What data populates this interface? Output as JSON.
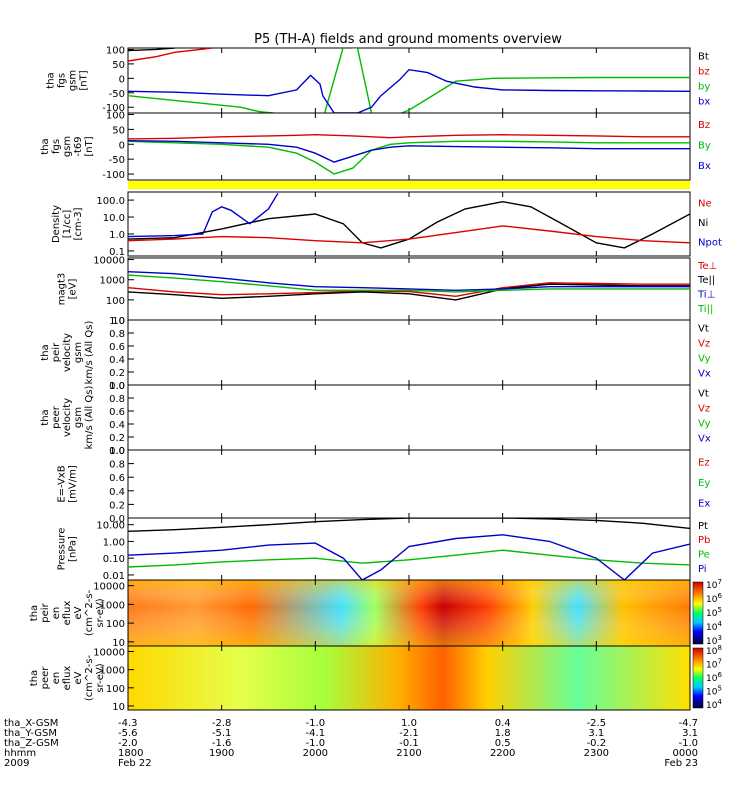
{
  "title": "P5 (TH-A) fields and ground moments overview",
  "chart_data": {
    "type": "line",
    "title": "P5 (TH-A) fields and ground moments overview",
    "x": [
      "1800",
      "1900",
      "2000",
      "2100",
      "2200",
      "2300",
      "0000"
    ],
    "panels": [
      {
        "id": "fgs",
        "ylabel_lines": [
          "tha",
          "fgs",
          "gsm",
          "[nT]"
        ],
        "ylim": [
          -120,
          105
        ],
        "yticks": [
          "100",
          "50",
          "0",
          "-50",
          "-100"
        ],
        "ytick_values": [
          100,
          50,
          0,
          -50,
          -100
        ],
        "legend": [
          {
            "name": "Bt",
            "color": "#000000"
          },
          {
            "name": "bz",
            "color": "#dd0000"
          },
          {
            "name": "by",
            "color": "#00bb00"
          },
          {
            "name": "bx",
            "color": "#0000cc"
          }
        ]
      },
      {
        "id": "fgs_sm",
        "ylabel_lines": [
          "tha",
          "fgs",
          "gsm",
          "-t69",
          "[nT]"
        ],
        "ylim": [
          -120,
          105
        ],
        "yticks": [
          "100",
          "50",
          "0",
          "-50",
          "-100"
        ],
        "ytick_values": [
          100,
          50,
          0,
          -50,
          -100
        ],
        "legend": [
          {
            "name": "Bz",
            "color": "#dd0000"
          },
          {
            "name": "By",
            "color": "#00bb00"
          },
          {
            "name": "Bx",
            "color": "#0000cc"
          }
        ]
      },
      {
        "id": "density",
        "ylabel_lines": [
          "Density",
          "[1/cc]",
          "[cm-3]"
        ],
        "scale": "log",
        "ylim": [
          0.05,
          300
        ],
        "yticks": [
          "100.0",
          "10.0",
          "1.0",
          "0.1"
        ],
        "ytick_values": [
          100,
          10,
          1,
          0.1
        ],
        "legend": [
          {
            "name": "Ne",
            "color": "#dd0000"
          },
          {
            "name": "Ni",
            "color": "#000000"
          },
          {
            "name": "Npot",
            "color": "#0000cc"
          }
        ]
      },
      {
        "id": "temperature",
        "ylabel_lines": [
          "magt3",
          "[eV]"
        ],
        "scale": "log",
        "ylim": [
          10,
          12000
        ],
        "yticks": [
          "10000",
          "1000",
          "100",
          "10"
        ],
        "ytick_values": [
          10000,
          1000,
          100,
          10
        ],
        "legend": [
          {
            "name": "Te⊥",
            "color": "#dd0000"
          },
          {
            "name": "Te||",
            "color": "#000000"
          },
          {
            "name": "Ti⊥",
            "color": "#0000cc"
          },
          {
            "name": "Ti||",
            "color": "#00bb00"
          }
        ]
      },
      {
        "id": "peir_velocity",
        "ylabel_lines": [
          "tha",
          "peir",
          "velocity",
          "gsm",
          "km/s (All Qs)"
        ],
        "ylim": [
          0,
          1
        ],
        "yticks": [
          "1.0",
          "0.8",
          "0.6",
          "0.4",
          "0.2",
          "0.0"
        ],
        "ytick_values": [
          1,
          0.8,
          0.6,
          0.4,
          0.2,
          0
        ],
        "legend": [
          {
            "name": "Vt",
            "color": "#000000"
          },
          {
            "name": "Vz",
            "color": "#dd0000"
          },
          {
            "name": "Vy",
            "color": "#00bb00"
          },
          {
            "name": "Vx",
            "color": "#0000cc"
          }
        ]
      },
      {
        "id": "peer_velocity",
        "ylabel_lines": [
          "tha",
          "peer",
          "velocity",
          "gsm",
          "km/s (All Qs)"
        ],
        "ylim": [
          0,
          1
        ],
        "yticks": [
          "1.0",
          "0.8",
          "0.6",
          "0.4",
          "0.2",
          "0.0"
        ],
        "ytick_values": [
          1,
          0.8,
          0.6,
          0.4,
          0.2,
          0
        ],
        "legend": [
          {
            "name": "Vt",
            "color": "#000000"
          },
          {
            "name": "Vz",
            "color": "#dd0000"
          },
          {
            "name": "Vy",
            "color": "#00bb00"
          },
          {
            "name": "Vx",
            "color": "#0000cc"
          }
        ]
      },
      {
        "id": "efield",
        "ylabel_lines": [
          "E=-VxB",
          "[mV/m]"
        ],
        "ylim": [
          0,
          1
        ],
        "yticks": [
          "1.0",
          "0.8",
          "0.6",
          "0.4",
          "0.2",
          "0.0"
        ],
        "ytick_values": [
          1,
          0.8,
          0.6,
          0.4,
          0.2,
          0
        ],
        "legend": [
          {
            "name": "Ez",
            "color": "#dd0000"
          },
          {
            "name": "Ey",
            "color": "#00bb00"
          },
          {
            "name": "Ex",
            "color": "#0000cc"
          }
        ]
      },
      {
        "id": "pressure",
        "ylabel_lines": [
          "Pressure",
          "[nPa]"
        ],
        "scale": "log",
        "ylim": [
          0.005,
          25
        ],
        "yticks": [
          "10.00",
          "1.00",
          "0.10",
          "0.01"
        ],
        "ytick_values": [
          10,
          1,
          0.1,
          0.01
        ],
        "legend": [
          {
            "name": "Pt",
            "color": "#000000"
          },
          {
            "name": "Pb",
            "color": "#dd0000"
          },
          {
            "name": "Pe",
            "color": "#00bb00"
          },
          {
            "name": "Pi",
            "color": "#0000cc"
          }
        ]
      },
      {
        "id": "peir_spec",
        "type": "heatmap",
        "ylabel_lines": [
          "tha",
          "peir",
          "en",
          "eflux",
          "eV",
          "(cm^2-s-",
          "sr-eV)"
        ],
        "scale": "log",
        "ylim": [
          6,
          20000
        ],
        "yticks": [
          "10000",
          "1000",
          "100",
          "10"
        ],
        "ytick_values": [
          10000,
          1000,
          100,
          10
        ],
        "colorbar": [
          "10^7",
          "10^6",
          "10^5",
          "10^4",
          "10^3"
        ]
      },
      {
        "id": "peer_spec",
        "type": "heatmap",
        "ylabel_lines": [
          "tha",
          "peer",
          "en",
          "eflux",
          "eV",
          "(cm^2-s-",
          "sr-eV)"
        ],
        "scale": "log",
        "ylim": [
          6,
          20000
        ],
        "yticks": [
          "10000",
          "1000",
          "100",
          "10"
        ],
        "ytick_values": [
          10000,
          1000,
          100,
          10
        ],
        "colorbar": [
          "10^8",
          "10^7",
          "10^6",
          "10^5",
          "10^4"
        ]
      }
    ],
    "ephemeris": {
      "rows": [
        {
          "label": "tha_X-GSM",
          "values": [
            "-4.3",
            "-2.8",
            "-1.0",
            "1.0",
            "0.4",
            "-2.5",
            "-4.7"
          ]
        },
        {
          "label": "tha_Y-GSM",
          "values": [
            "-5.6",
            "-5.1",
            "-4.1",
            "-2.1",
            "1.8",
            "3.1",
            "3.1"
          ]
        },
        {
          "label": "tha_Z-GSM",
          "values": [
            "-2.0",
            "-1.6",
            "-1.0",
            "-0.1",
            "0.5",
            "-0.2",
            "-1.0"
          ]
        },
        {
          "label": "hhmm",
          "values": [
            "1800",
            "1900",
            "2000",
            "2100",
            "2200",
            "2300",
            "0000"
          ]
        },
        {
          "label": "2009",
          "values": [
            "Feb 22",
            "",
            "",
            "",
            "",
            "",
            "Feb 23"
          ]
        }
      ]
    },
    "series": {
      "fgs_Bt": {
        "x": [
          0,
          0.3,
          0.5
        ],
        "y": [
          96,
          100,
          105
        ]
      },
      "fgs_bz": {
        "x": [
          0,
          0.3,
          0.5,
          0.9
        ],
        "y": [
          60,
          75,
          90,
          105
        ]
      },
      "fgs_by": {
        "x": [
          0,
          0.3,
          0.6,
          0.9,
          1.2,
          1.4,
          1.7,
          1.95,
          2.05,
          2.1,
          2.3,
          2.45,
          2.6,
          2.8,
          3.0,
          3.2,
          3.4,
          3.5,
          3.9,
          4.5,
          5.0,
          5.5,
          6.0
        ],
        "y": [
          -60,
          -70,
          -80,
          -90,
          -100,
          -115,
          -125,
          -135,
          -145,
          -120,
          110,
          105,
          -120,
          -135,
          -110,
          -70,
          -30,
          -10,
          0,
          2,
          3,
          3,
          3
        ]
      },
      "fgs_bx": {
        "x": [
          0,
          0.5,
          1.0,
          1.5,
          1.8,
          1.95,
          2.05,
          2.08,
          2.2,
          2.45,
          2.6,
          2.7,
          2.9,
          3.0,
          3.2,
          3.4,
          3.7,
          4.0,
          4.5,
          5.0,
          5.5,
          6.0
        ],
        "y": [
          -45,
          -48,
          -55,
          -60,
          -40,
          10,
          -20,
          -60,
          -120,
          -120,
          -100,
          -60,
          -5,
          30,
          20,
          -10,
          -30,
          -40,
          -42,
          -43,
          -44,
          -45
        ]
      },
      "fgs2_Bz": {
        "x": [
          0,
          0.5,
          1.0,
          1.5,
          1.8,
          2.0,
          2.2,
          2.4,
          2.6,
          2.8,
          3.0,
          3.5,
          4.0,
          4.5,
          5.0,
          5.5,
          6.0
        ],
        "y": [
          18,
          20,
          25,
          28,
          30,
          32,
          30,
          28,
          25,
          22,
          25,
          30,
          32,
          30,
          28,
          25,
          25
        ]
      },
      "fgs2_By": {
        "x": [
          0,
          0.5,
          1.0,
          1.5,
          1.8,
          2.0,
          2.2,
          2.4,
          2.6,
          2.8,
          3.0,
          3.5,
          4.0,
          4.5,
          5.0,
          5.5,
          6.0
        ],
        "y": [
          10,
          5,
          0,
          -10,
          -30,
          -60,
          -100,
          -80,
          -20,
          0,
          5,
          10,
          10,
          8,
          5,
          5,
          5
        ]
      },
      "fgs2_Bx": {
        "x": [
          0,
          0.5,
          1.0,
          1.5,
          1.8,
          2.0,
          2.2,
          2.4,
          2.6,
          2.8,
          3.0,
          3.5,
          4.0,
          4.5,
          5.0,
          5.5,
          6.0
        ],
        "y": [
          12,
          10,
          5,
          0,
          -10,
          -30,
          -60,
          -40,
          -20,
          -10,
          -5,
          -8,
          -10,
          -12,
          -15,
          -15,
          -15
        ]
      },
      "dens_Ni": {
        "x": [
          0,
          0.5,
          1.0,
          1.5,
          2.0,
          2.3,
          2.5,
          2.7,
          3.0,
          3.3,
          3.6,
          4.0,
          4.3,
          4.6,
          5.0,
          5.3,
          5.6,
          6.0
        ],
        "y": [
          0.5,
          0.6,
          2,
          8,
          15,
          4,
          0.3,
          0.15,
          0.5,
          5,
          30,
          80,
          40,
          5,
          0.3,
          0.15,
          1,
          15
        ]
      },
      "dens_Ne": {
        "x": [
          0,
          0.5,
          1.0,
          1.5,
          2.0,
          2.5,
          3.0,
          3.5,
          4.0,
          4.5,
          5.0,
          5.5,
          6.0
        ],
        "y": [
          0.4,
          0.5,
          0.7,
          0.6,
          0.4,
          0.3,
          0.5,
          1.2,
          3,
          1.5,
          0.7,
          0.4,
          0.3
        ]
      },
      "dens_Npot": {
        "x": [
          0,
          0.5,
          0.8,
          0.9,
          1.0,
          1.1,
          1.3,
          1.5,
          1.6
        ],
        "y": [
          0.7,
          0.8,
          1.0,
          20,
          40,
          25,
          4,
          30,
          250
        ]
      },
      "temp_Te_perp": {
        "x": [
          0,
          0.5,
          1.0,
          1.5,
          2.0,
          2.5,
          3.0,
          3.5,
          4.0,
          4.5,
          5.0,
          5.5,
          6.0
        ],
        "y": [
          400,
          250,
          180,
          200,
          230,
          280,
          260,
          150,
          400,
          700,
          650,
          600,
          600
        ]
      },
      "temp_Te_par": {
        "x": [
          0,
          0.5,
          1.0,
          1.5,
          2.0,
          2.5,
          3.0,
          3.5,
          4.0,
          4.5,
          5.0,
          5.5,
          6.0
        ],
        "y": [
          250,
          180,
          120,
          150,
          200,
          250,
          200,
          100,
          350,
          600,
          550,
          500,
          500
        ]
      },
      "temp_Ti_perp": {
        "x": [
          0,
          0.5,
          1.0,
          1.5,
          2.0,
          2.5,
          3.0,
          3.5,
          4.0,
          4.5,
          5.0,
          5.5,
          6.0
        ],
        "y": [
          2500,
          2000,
          1200,
          700,
          450,
          400,
          350,
          300,
          350,
          450,
          450,
          450,
          450
        ]
      },
      "temp_Ti_par": {
        "x": [
          0,
          0.5,
          1.0,
          1.5,
          2.0,
          2.5,
          3.0,
          3.5,
          4.0,
          4.5,
          5.0,
          5.5,
          6.0
        ],
        "y": [
          1700,
          1200,
          800,
          500,
          300,
          300,
          300,
          250,
          300,
          350,
          350,
          350,
          350
        ]
      },
      "pres_Pt": {
        "x": [
          0,
          0.5,
          1.0,
          1.5,
          2.0,
          2.5,
          3.0,
          3.5,
          4.0,
          4.5,
          5.0,
          5.5,
          6.0
        ],
        "y": [
          4,
          5,
          7,
          10,
          15,
          20,
          25,
          25,
          25,
          22,
          18,
          12,
          6
        ]
      },
      "pres_Pi": {
        "x": [
          0,
          0.5,
          1.0,
          1.5,
          2.0,
          2.3,
          2.5,
          2.7,
          3.0,
          3.5,
          4.0,
          4.5,
          5.0,
          5.3,
          5.6,
          6.0
        ],
        "y": [
          0.15,
          0.2,
          0.3,
          0.6,
          0.8,
          0.1,
          0.005,
          0.02,
          0.5,
          1.5,
          2.5,
          1,
          0.1,
          0.005,
          0.2,
          0.7
        ]
      },
      "pres_Pe": {
        "x": [
          0,
          0.5,
          1.0,
          1.5,
          2.0,
          2.5,
          3.0,
          3.5,
          4.0,
          4.5,
          5.0,
          5.5,
          6.0
        ],
        "y": [
          0.03,
          0.04,
          0.06,
          0.08,
          0.1,
          0.05,
          0.08,
          0.15,
          0.3,
          0.15,
          0.08,
          0.05,
          0.04
        ]
      }
    }
  }
}
